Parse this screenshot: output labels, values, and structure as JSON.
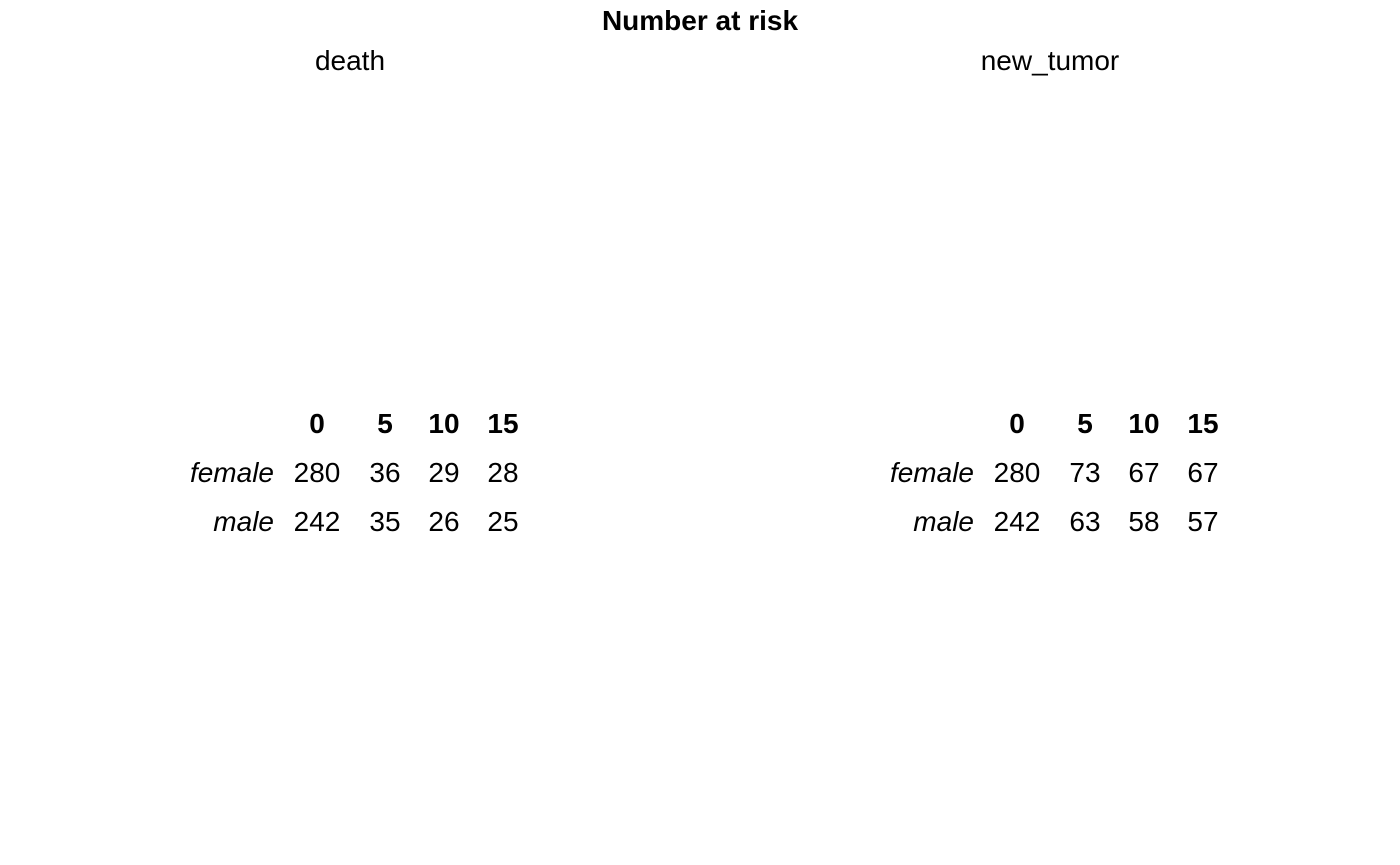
{
  "title": "Number at risk",
  "chart_data": {
    "type": "table",
    "title": "Number at risk",
    "panels": [
      {
        "name": "death",
        "times": [
          "0",
          "5",
          "10",
          "15"
        ],
        "rows": [
          {
            "group": "female",
            "values": [
              280,
              36,
              29,
              28
            ]
          },
          {
            "group": "male",
            "values": [
              242,
              35,
              26,
              25
            ]
          }
        ]
      },
      {
        "name": "new_tumor",
        "times": [
          "0",
          "5",
          "10",
          "15"
        ],
        "rows": [
          {
            "group": "female",
            "values": [
              280,
              73,
              67,
              67
            ]
          },
          {
            "group": "male",
            "values": [
              242,
              63,
              58,
              57
            ]
          }
        ]
      }
    ]
  }
}
